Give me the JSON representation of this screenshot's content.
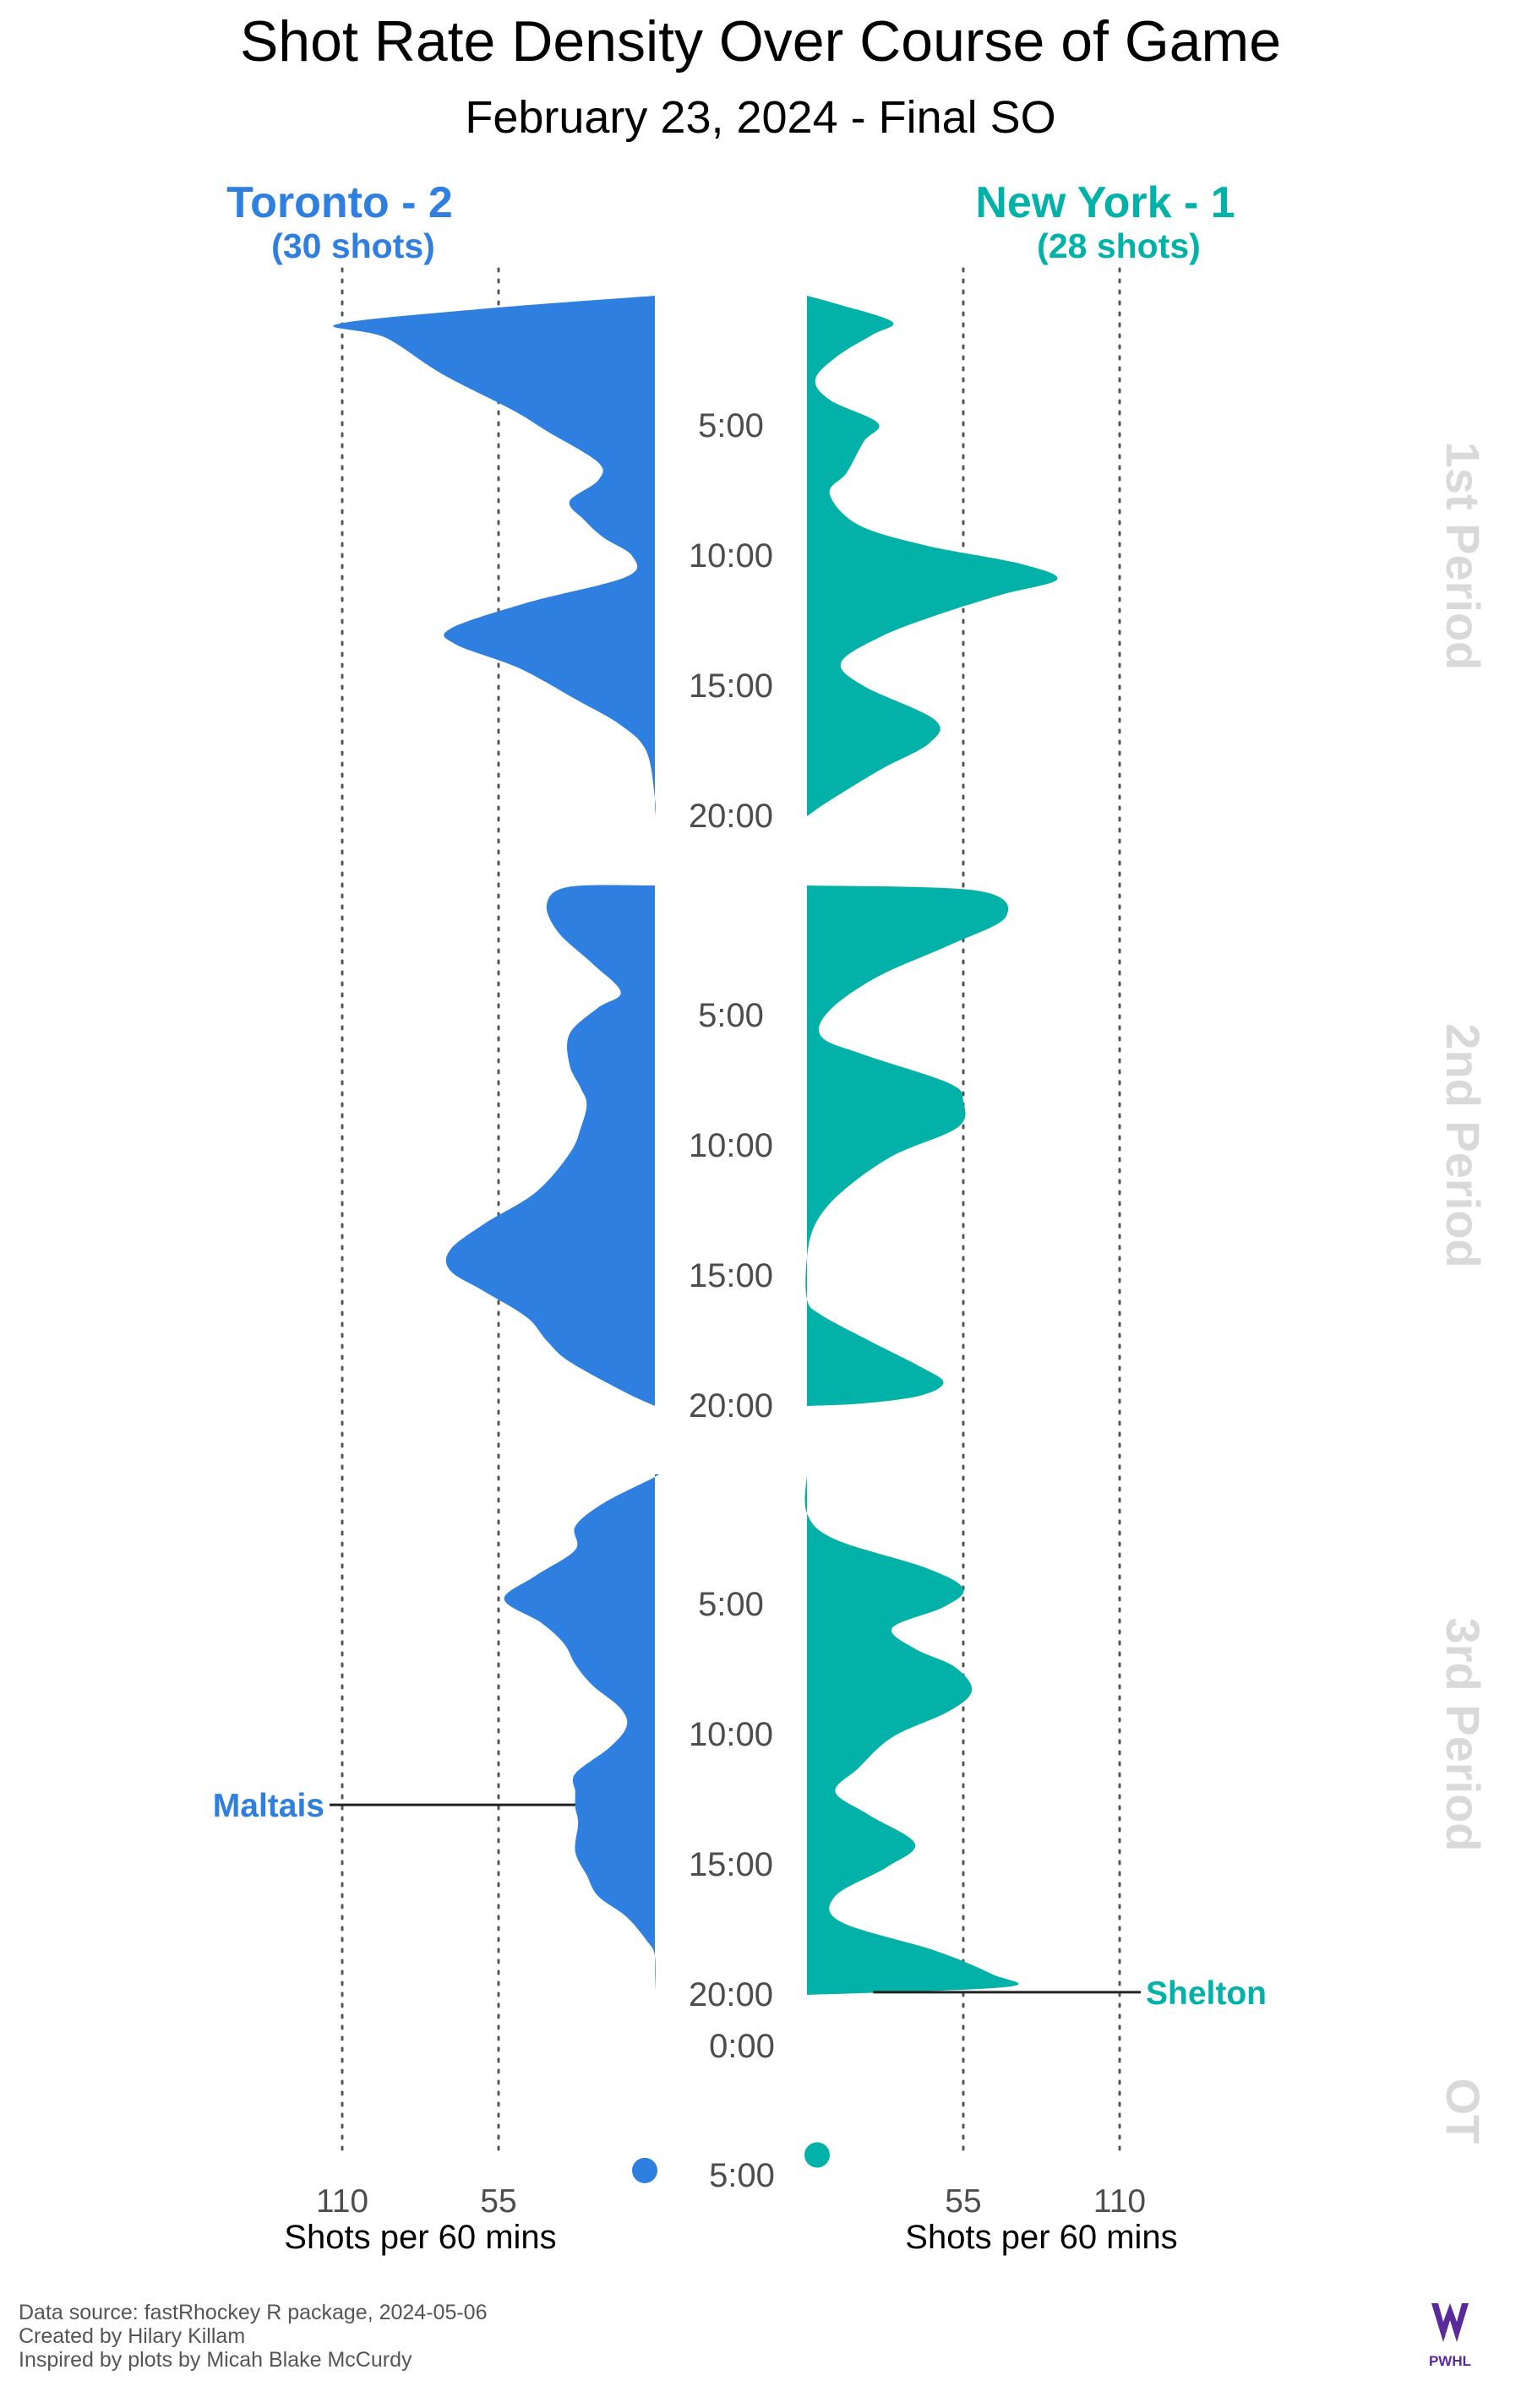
{
  "header": {
    "title": "Shot Rate Density Over Course of Game",
    "subtitle": "February 23, 2024 - Final SO"
  },
  "teams": {
    "left": {
      "label": "Toronto - 2",
      "shots": "(30 shots)",
      "color": "#2F7FE0"
    },
    "right": {
      "label": "New York - 1",
      "shots": "(28 shots)",
      "color": "#02B2A8"
    }
  },
  "axes": {
    "xlabel": "Shots per 60 mins",
    "xticks": [
      110,
      55
    ],
    "xmax": 110,
    "period_minutes": 20,
    "ot_minutes": 5
  },
  "period_labels": [
    "1st Period",
    "2nd Period",
    "3rd Period",
    "OT"
  ],
  "time_ticks": {
    "regulation": [
      "5:00",
      "10:00",
      "15:00",
      "20:00"
    ],
    "ot": [
      "0:00",
      "5:00"
    ]
  },
  "chart_data": {
    "type": "area",
    "x_unit": "game minute within period",
    "y_unit": "shots per 60 minutes",
    "series": [
      {
        "team": "Toronto",
        "periods": [
          {
            "period": 1,
            "points": [
              [
                0,
                0
              ],
              [
                0.5,
                60
              ],
              [
                1.1,
                112
              ],
              [
                1.6,
                95
              ],
              [
                3,
                75
              ],
              [
                4.4,
                50
              ],
              [
                5.2,
                38
              ],
              [
                6.4,
                20
              ],
              [
                7.1,
                20
              ],
              [
                7.9,
                30
              ],
              [
                8.6,
                25
              ],
              [
                9.3,
                18
              ],
              [
                10.0,
                8
              ],
              [
                10.8,
                10
              ],
              [
                11.8,
                45
              ],
              [
                12.8,
                72
              ],
              [
                13.4,
                70
              ],
              [
                14.3,
                48
              ],
              [
                15.5,
                28
              ],
              [
                16.5,
                12
              ],
              [
                17.5,
                3
              ],
              [
                19.3,
                0
              ],
              [
                20,
                0
              ]
            ]
          },
          {
            "period": 2,
            "points": [
              [
                0,
                0
              ],
              [
                0.05,
                30
              ],
              [
                0.7,
                38
              ],
              [
                1.8,
                34
              ],
              [
                3,
                22
              ],
              [
                4.1,
                12
              ],
              [
                4.7,
                20
              ],
              [
                5.7,
                30
              ],
              [
                6.9,
                30
              ],
              [
                7.8,
                26
              ],
              [
                8.4,
                24
              ],
              [
                9.3,
                26
              ],
              [
                10.3,
                30
              ],
              [
                11.8,
                42
              ],
              [
                13,
                60
              ],
              [
                14,
                72
              ],
              [
                14.8,
                72
              ],
              [
                15.6,
                60
              ],
              [
                16.6,
                45
              ],
              [
                17.5,
                38
              ],
              [
                18.3,
                30
              ],
              [
                19.5,
                10
              ],
              [
                20,
                0
              ]
            ]
          },
          {
            "period": 3,
            "points": [
              [
                0,
                0
              ],
              [
                0.1,
                0
              ],
              [
                1.1,
                18
              ],
              [
                2,
                28
              ],
              [
                2.9,
                28
              ],
              [
                3.9,
                42
              ],
              [
                4.8,
                53
              ],
              [
                5.7,
                40
              ],
              [
                6.5,
                32
              ],
              [
                7.3,
                28
              ],
              [
                8.1,
                22
              ],
              [
                9.0,
                12
              ],
              [
                9.7,
                10
              ],
              [
                10.5,
                16
              ],
              [
                11.5,
                28
              ],
              [
                12.2,
                28
              ],
              [
                12.8,
                28
              ],
              [
                13.4,
                27
              ],
              [
                14.5,
                28
              ],
              [
                15.4,
                24
              ],
              [
                16.2,
                20
              ],
              [
                17.0,
                10
              ],
              [
                17.9,
                3
              ],
              [
                18.5,
                0
              ],
              [
                20,
                0
              ]
            ]
          }
        ]
      },
      {
        "team": "New York",
        "periods": [
          {
            "period": 1,
            "points": [
              [
                0,
                0
              ],
              [
                0.3,
                10
              ],
              [
                1,
                30
              ],
              [
                1.5,
                23
              ],
              [
                2.3,
                11
              ],
              [
                3.2,
                3
              ],
              [
                4.0,
                8
              ],
              [
                4.9,
                25
              ],
              [
                5.6,
                20
              ],
              [
                6.8,
                14
              ],
              [
                7.6,
                8
              ],
              [
                8.8,
                18
              ],
              [
                9.6,
                42
              ],
              [
                10.3,
                75
              ],
              [
                10.9,
                88
              ],
              [
                11.5,
                68
              ],
              [
                12.3,
                45
              ],
              [
                13.1,
                26
              ],
              [
                14.1,
                12
              ],
              [
                15.0,
                20
              ],
              [
                16.3,
                45
              ],
              [
                17.2,
                43
              ],
              [
                18.2,
                26
              ],
              [
                19.4,
                8
              ],
              [
                20,
                0
              ]
            ]
          },
          {
            "period": 2,
            "points": [
              [
                0,
                0
              ],
              [
                0.2,
                60
              ],
              [
                1.2,
                70
              ],
              [
                2.3,
                50
              ],
              [
                3.5,
                25
              ],
              [
                4.8,
                8
              ],
              [
                5.8,
                5
              ],
              [
                6.5,
                20
              ],
              [
                7.6,
                50
              ],
              [
                8.3,
                55
              ],
              [
                9.3,
                53
              ],
              [
                10.4,
                30
              ],
              [
                11.8,
                12
              ],
              [
                13.0,
                3
              ],
              [
                14.3,
                0
              ],
              [
                15.9,
                0
              ],
              [
                16.5,
                5
              ],
              [
                17.5,
                22
              ],
              [
                18.5,
                40
              ],
              [
                19.1,
                48
              ],
              [
                19.6,
                40
              ],
              [
                19.9,
                20
              ],
              [
                20,
                0
              ]
            ]
          },
          {
            "period": 3,
            "points": [
              [
                0,
                0
              ],
              [
                1.5,
                0
              ],
              [
                2.5,
                10
              ],
              [
                3.6,
                42
              ],
              [
                4.4,
                55
              ],
              [
                5.1,
                48
              ],
              [
                5.9,
                30
              ],
              [
                6.7,
                38
              ],
              [
                7.4,
                52
              ],
              [
                8.3,
                58
              ],
              [
                9.1,
                50
              ],
              [
                10.1,
                30
              ],
              [
                11.3,
                18
              ],
              [
                12.2,
                10
              ],
              [
                13.1,
                22
              ],
              [
                14.2,
                38
              ],
              [
                15.1,
                28
              ],
              [
                16.2,
                10
              ],
              [
                17.2,
                12
              ],
              [
                18.3,
                45
              ],
              [
                19.2,
                65
              ],
              [
                19.7,
                70
              ],
              [
                20,
                0
              ]
            ]
          }
        ]
      }
    ],
    "ot": [
      {
        "team": "Toronto",
        "minute": 4.8,
        "value": 0
      },
      {
        "team": "New York",
        "minute": 4.2,
        "value": 0
      }
    ],
    "goals": [
      {
        "team": "Toronto",
        "player": "Maltais",
        "period": 3,
        "minute": 12.7
      },
      {
        "team": "New York",
        "player": "Shelton",
        "period": 3,
        "minute": 19.9
      }
    ]
  },
  "footer": {
    "lines": [
      "Data source: fastRhockey R package, 2024-05-06",
      "Created by Hilary Killam",
      "Inspired by plots by Micah Blake McCurdy"
    ],
    "logo_text": "PWHL",
    "logo_color": "#5A2A9C"
  }
}
